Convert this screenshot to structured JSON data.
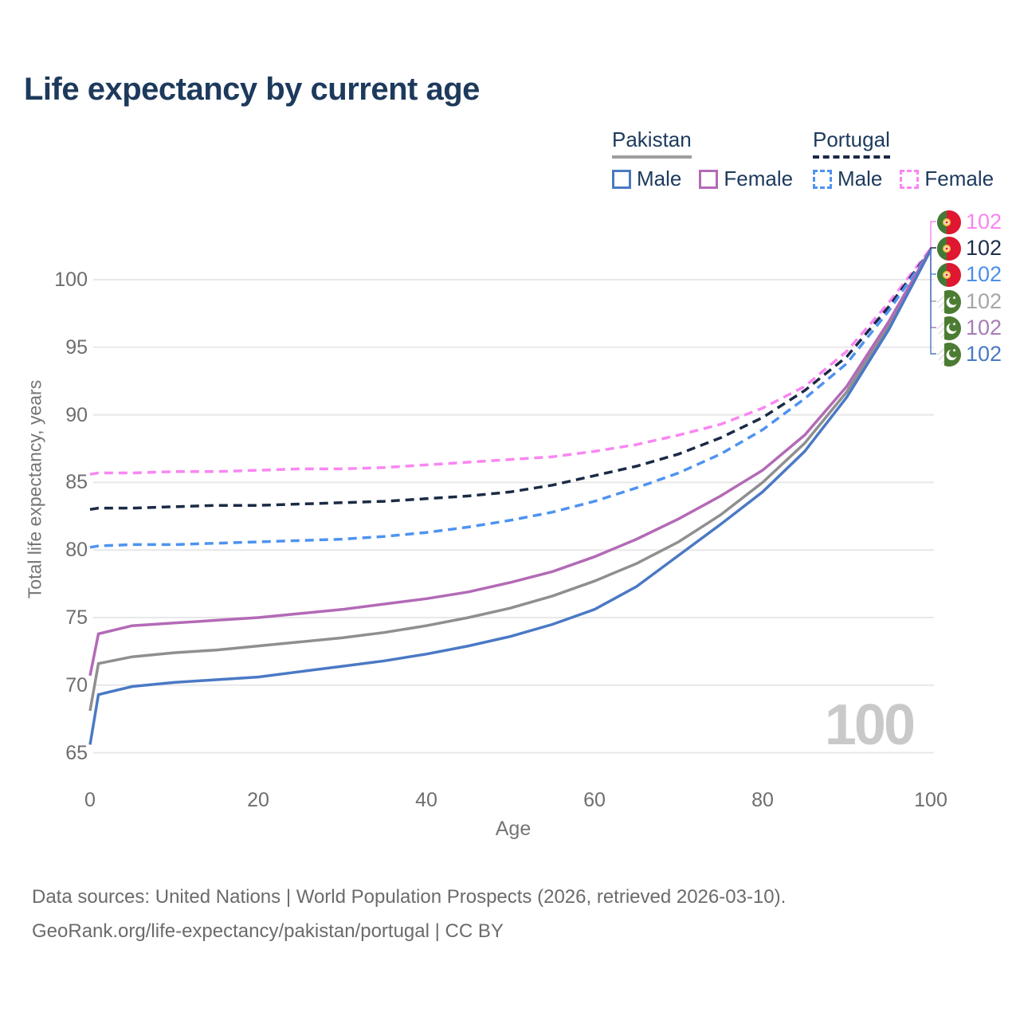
{
  "title": "Life expectancy by current age",
  "watermark": "100",
  "legend": {
    "groups": [
      {
        "country": "Pakistan",
        "line_style": "solid",
        "items": [
          {
            "label": "Male",
            "series": "pakistan_male"
          },
          {
            "label": "Female",
            "series": "pakistan_female"
          }
        ]
      },
      {
        "country": "Portugal",
        "line_style": "dashed",
        "items": [
          {
            "label": "Male",
            "series": "portugal_male"
          },
          {
            "label": "Female",
            "series": "portugal_female"
          }
        ]
      }
    ]
  },
  "y_axis": {
    "title": "Total life expectancy, years",
    "ticks": [
      65,
      70,
      75,
      80,
      85,
      90,
      95,
      100
    ],
    "range": [
      65,
      102.3
    ]
  },
  "x_axis": {
    "title": "Age",
    "ticks": [
      0,
      20,
      40,
      60,
      80,
      100
    ],
    "range": [
      0,
      100
    ]
  },
  "end_labels": [
    {
      "series": "portugal_female",
      "value": "102",
      "flag": "portugal",
      "color": "#f886ef"
    },
    {
      "series": "portugal_both",
      "value": "102",
      "flag": "portugal",
      "color": "#1d2e4e"
    },
    {
      "series": "portugal_male",
      "value": "102",
      "flag": "portugal",
      "color": "#4b90ea"
    },
    {
      "series": "pakistan_both",
      "value": "102",
      "flag": "pakistan",
      "color": "#a6a6a6"
    },
    {
      "series": "pakistan_female",
      "value": "102",
      "flag": "pakistan",
      "color": "#a87cb5"
    },
    {
      "series": "pakistan_male",
      "value": "102",
      "flag": "pakistan",
      "color": "#4a79c5"
    }
  ],
  "footer": {
    "line1": "Data sources: United Nations | World Population Prospects (2026, retrieved 2026-03-10).",
    "line2": "GeoRank.org/life-expectancy/pakistan/portugal | CC BY"
  },
  "colors": {
    "title_text": "#1d3a5c",
    "axis_text": "#6e6e6e",
    "gridline": "#e8e8e8",
    "watermark": "#c9c9c9",
    "pakistan_male": "#4a79c5",
    "pakistan_female": "#b36ab6",
    "pakistan_both": "#8f8f8f",
    "portugal_male": "#4e93f0",
    "portugal_female": "#fa86f2",
    "portugal_both": "#1b2a45"
  },
  "chart_data": {
    "type": "line",
    "title": "Life expectancy by current age",
    "xlabel": "Age",
    "ylabel": "Total life expectancy, years",
    "xlim": [
      0,
      100
    ],
    "ylim": [
      65,
      102.3
    ],
    "grid": "horizontal",
    "legend_position": "top-right",
    "x": [
      0,
      1,
      5,
      10,
      15,
      20,
      25,
      30,
      35,
      40,
      45,
      50,
      55,
      60,
      65,
      70,
      75,
      80,
      85,
      90,
      95,
      100
    ],
    "series": [
      {
        "id": "portugal_female",
        "name": "Portugal Female",
        "country": "Portugal",
        "sex": "Female",
        "style": "dashed",
        "color": "#fa86f2",
        "values": [
          85.6,
          85.7,
          85.7,
          85.8,
          85.8,
          85.9,
          86.0,
          86.0,
          86.1,
          86.3,
          86.5,
          86.7,
          86.9,
          87.3,
          87.8,
          88.5,
          89.3,
          90.5,
          92.1,
          94.7,
          98.3,
          102.3
        ]
      },
      {
        "id": "portugal_both",
        "name": "Portugal Both sexes",
        "country": "Portugal",
        "sex": "Both sexes",
        "style": "dashed",
        "color": "#1b2a45",
        "values": [
          83.0,
          83.1,
          83.1,
          83.2,
          83.3,
          83.3,
          83.4,
          83.5,
          83.6,
          83.8,
          84.0,
          84.3,
          84.8,
          85.5,
          86.2,
          87.1,
          88.3,
          89.8,
          91.8,
          94.3,
          98.0,
          102.2
        ]
      },
      {
        "id": "portugal_male",
        "name": "Portugal Male",
        "country": "Portugal",
        "sex": "Male",
        "style": "dashed",
        "color": "#4e93f0",
        "values": [
          80.2,
          80.3,
          80.4,
          80.4,
          80.5,
          80.6,
          80.7,
          80.8,
          81.0,
          81.3,
          81.7,
          82.2,
          82.8,
          83.6,
          84.6,
          85.7,
          87.1,
          88.9,
          91.2,
          93.8,
          97.7,
          102.2
        ]
      },
      {
        "id": "pakistan_both",
        "name": "Pakistan Both sexes",
        "country": "Pakistan",
        "sex": "Both sexes",
        "style": "solid",
        "color": "#8f8f8f",
        "values": [
          68.1,
          71.6,
          72.1,
          72.4,
          72.6,
          72.9,
          73.2,
          73.5,
          73.9,
          74.4,
          75.0,
          75.7,
          76.6,
          77.7,
          79.0,
          80.6,
          82.6,
          85.0,
          87.9,
          91.7,
          96.6,
          102.2
        ]
      },
      {
        "id": "pakistan_female",
        "name": "Pakistan Female",
        "country": "Pakistan",
        "sex": "Female",
        "style": "solid",
        "color": "#b36ab6",
        "values": [
          70.7,
          73.8,
          74.4,
          74.6,
          74.8,
          75.0,
          75.3,
          75.6,
          76.0,
          76.4,
          76.9,
          77.6,
          78.4,
          79.5,
          80.8,
          82.3,
          84.0,
          85.9,
          88.5,
          92.1,
          96.9,
          102.3
        ]
      },
      {
        "id": "pakistan_male",
        "name": "Pakistan Male",
        "country": "Pakistan",
        "sex": "Male",
        "style": "solid",
        "color": "#4a79c5",
        "values": [
          65.6,
          69.3,
          69.9,
          70.2,
          70.4,
          70.6,
          71.0,
          71.4,
          71.8,
          72.3,
          72.9,
          73.6,
          74.5,
          75.6,
          77.3,
          79.6,
          81.9,
          84.3,
          87.3,
          91.3,
          96.3,
          102.2
        ]
      }
    ]
  }
}
